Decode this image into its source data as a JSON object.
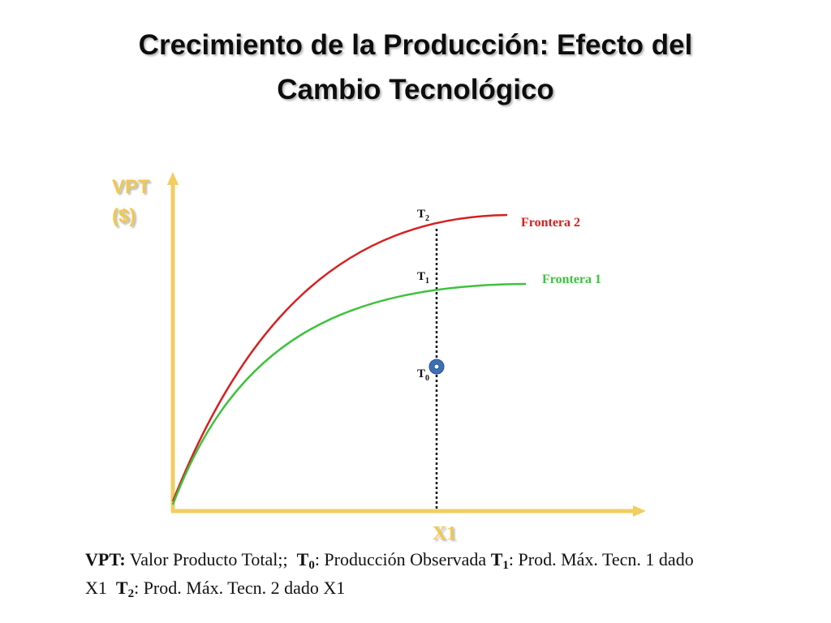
{
  "title_lines": [
    "Crecimiento de la Producción: Efecto del",
    "Cambio Tecnológico"
  ],
  "y_axis_label": [
    "VPT",
    "($)"
  ],
  "x_axis_label": "X1",
  "curves": [
    {
      "label": "Frontera 2"
    },
    {
      "label": "Frontera 1"
    }
  ],
  "points": [
    {
      "base": "T",
      "sub": "2"
    },
    {
      "base": "T",
      "sub": "1"
    },
    {
      "base": "T",
      "sub": "0"
    }
  ],
  "footnote": [
    {
      "text": "VPT:",
      "bold": true
    },
    {
      "text": " Valor Producto Total;;  "
    },
    {
      "text": "T",
      "bold": true
    },
    {
      "text": "0",
      "bold": true,
      "sub": true
    },
    {
      "text": ": Producción Observada "
    },
    {
      "text": "T",
      "bold": true
    },
    {
      "text": "1",
      "bold": true,
      "sub": true
    },
    {
      "text": ": Prod. Máx. Tecn. 1 dado X1  "
    },
    {
      "text": "T",
      "bold": true
    },
    {
      "text": "2",
      "bold": true,
      "sub": true
    },
    {
      "text": ": Prod. Máx. Tecn. 2 dado X1"
    }
  ]
}
